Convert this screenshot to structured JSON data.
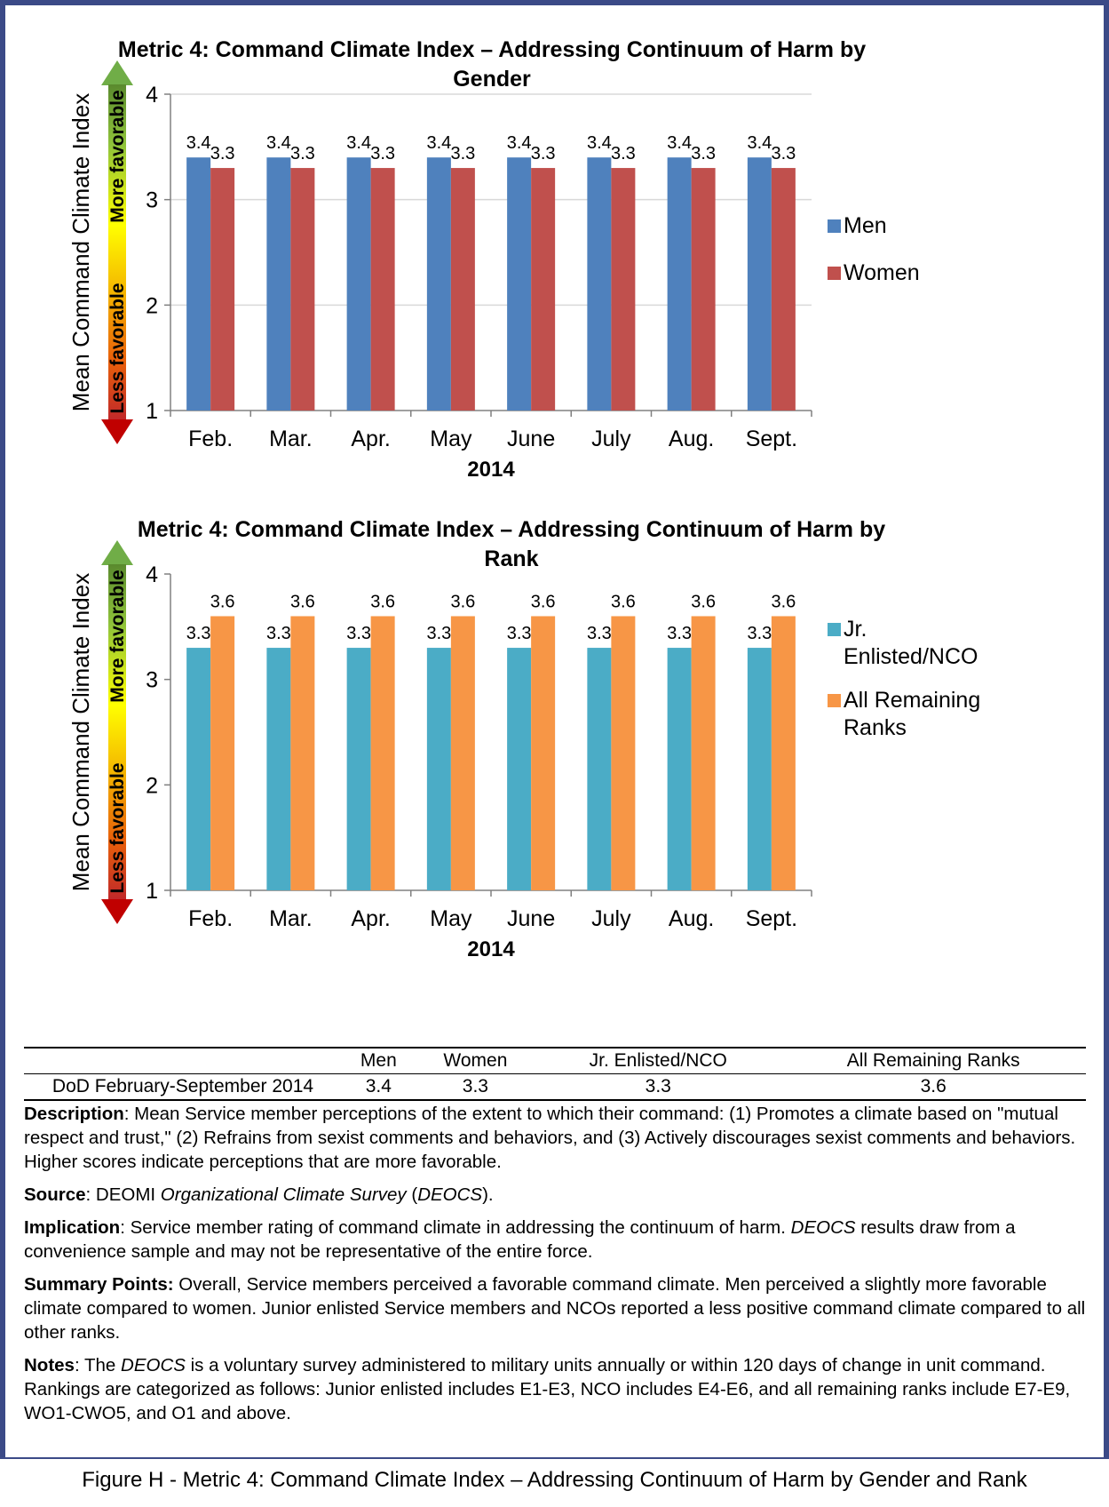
{
  "chart_data": [
    {
      "type": "bar",
      "title": "Metric 4: Command Climate Index – Addressing Continuum of Harm by Gender",
      "title_lines": [
        "Metric 4: Command Climate Index – Addressing Continuum of Harm by",
        "Gender"
      ],
      "ylabel": "Mean Command Climate Index",
      "xlabel": "2014",
      "favorable_high": "More favorable",
      "favorable_low": "Less favorable",
      "ylim": [
        1,
        4
      ],
      "yticks": [
        1,
        2,
        3,
        4
      ],
      "grid": true,
      "legend_position": "right",
      "categories": [
        "Feb.",
        "Mar.",
        "Apr.",
        "May",
        "June",
        "July",
        "Aug.",
        "Sept."
      ],
      "series": [
        {
          "name": "Men",
          "color": "#4f81bd",
          "values": [
            3.4,
            3.4,
            3.4,
            3.4,
            3.4,
            3.4,
            3.4,
            3.4
          ],
          "legend_lines": [
            "Men"
          ]
        },
        {
          "name": "Women",
          "color": "#c0504d",
          "values": [
            3.3,
            3.3,
            3.3,
            3.3,
            3.3,
            3.3,
            3.3,
            3.3
          ],
          "legend_lines": [
            "Women"
          ]
        }
      ]
    },
    {
      "type": "bar",
      "title": "Metric 4: Command Climate Index – Addressing Continuum of Harm  by Rank",
      "title_lines": [
        "Metric 4: Command Climate Index – Addressing Continuum of Harm  by",
        "Rank"
      ],
      "ylabel": "Mean Command Climate Index",
      "xlabel": "2014",
      "favorable_high": "More favorable",
      "favorable_low": "Less favorable",
      "ylim": [
        1,
        4
      ],
      "yticks": [
        1,
        2,
        3,
        4
      ],
      "grid": false,
      "legend_position": "right",
      "categories": [
        "Feb.",
        "Mar.",
        "Apr.",
        "May",
        "June",
        "July",
        "Aug.",
        "Sept."
      ],
      "series": [
        {
          "name": "Jr. Enlisted/NCO",
          "color": "#4bacc6",
          "values": [
            3.3,
            3.3,
            3.3,
            3.3,
            3.3,
            3.3,
            3.3,
            3.3
          ],
          "legend_lines": [
            "Jr.",
            "Enlisted/NCO"
          ]
        },
        {
          "name": "All Remaining Ranks",
          "color": "#f79646",
          "values": [
            3.6,
            3.6,
            3.6,
            3.6,
            3.6,
            3.6,
            3.6,
            3.6
          ],
          "legend_lines": [
            "All Remaining",
            "Ranks"
          ]
        }
      ]
    }
  ],
  "table": {
    "headers": [
      "",
      "Men",
      "Women",
      "Jr. Enlisted/NCO",
      "All Remaining Ranks"
    ],
    "row_label": "DoD February-September 2014",
    "values": [
      "3.4",
      "3.3",
      "3.3",
      "3.6"
    ]
  },
  "notes": {
    "description_label": "Description",
    "description_text": ": Mean Service member perceptions of the extent to which their command: (1) Promotes a climate based on \"mutual respect and trust,\" (2) Refrains from sexist comments and behaviors, and (3) Actively discourages sexist comments and behaviors.  Higher scores indicate perceptions that are more favorable.",
    "source_label": "Source",
    "source_pre": ":  DEOMI ",
    "source_italic": "Organizational Climate Survey",
    "source_mid": " (",
    "source_abbr": "DEOCS",
    "source_post": ").",
    "implication_label": "Implication",
    "implication_pre": ":  Service member rating of command climate in addressing the continuum of harm.  ",
    "implication_abbr": "DEOCS",
    "implication_post": " results draw from a convenience sample and may not be representative of the entire force.",
    "summary_label": "Summary Points:",
    "summary_text": " Overall, Service members perceived a favorable command climate.  Men perceived a slightly more favorable climate compared to women.  Junior enlisted Service members and NCOs reported a less positive command climate compared to all other ranks.",
    "notes_label": "Notes",
    "notes_pre": ": The ",
    "notes_abbr": "DEOCS",
    "notes_post": " is a voluntary survey administered to military units annually or within 120 days of change in unit command.  Rankings are categorized as follows: Junior enlisted includes E1-E3, NCO includes E4-E6, and all remaining ranks include E7-E9, WO1-CWO5, and O1 and above."
  },
  "caption": "Figure H - Metric 4: Command Climate Index – Addressing Continuum of Harm by Gender and Rank",
  "colors": {
    "frame": "#3b4a87",
    "arrow_top": "#70ad47",
    "arrow_bottom": "#c00000",
    "gridline": "#d9d9d9"
  }
}
